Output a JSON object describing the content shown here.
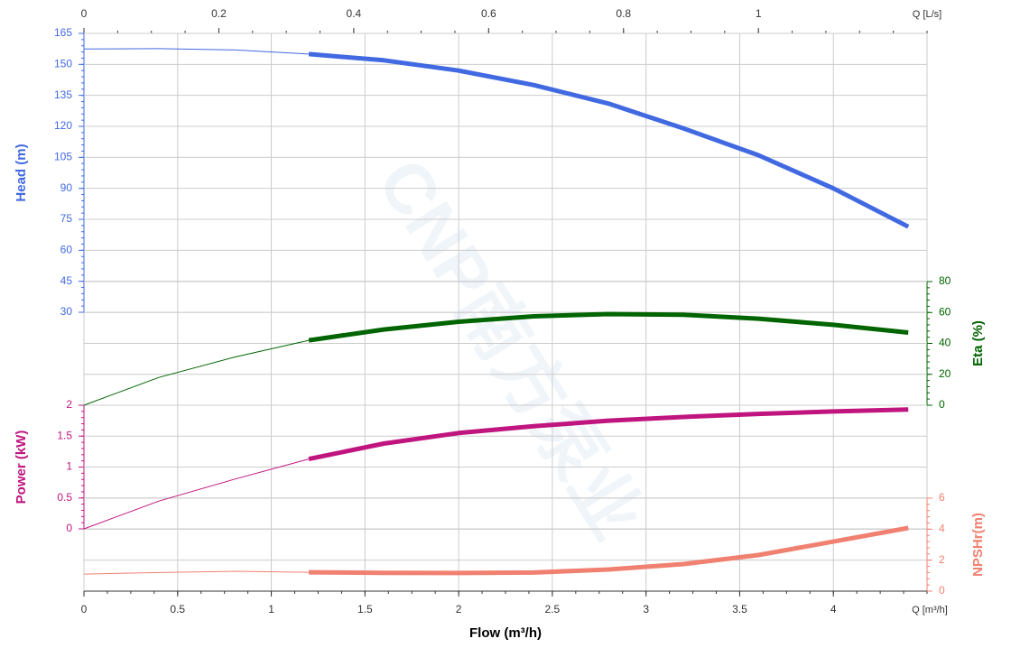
{
  "chart_data": {
    "type": "line",
    "xlabel": "Flow (m³/h)",
    "xunit_label": "Q [m³/h]",
    "xlim": [
      0,
      4.5
    ],
    "xticks": [
      0,
      0.5,
      1,
      1.5,
      2,
      2.5,
      3,
      3.5,
      4
    ],
    "x2unit_label": "Q [L/s]",
    "x2lim": [
      0,
      1.25
    ],
    "x2ticks": [
      0,
      0.2,
      0.4,
      0.6,
      0.8,
      1
    ],
    "x": [
      0,
      0.4,
      0.8,
      1.2,
      1.6,
      2.0,
      2.4,
      2.8,
      3.2,
      3.6,
      4.0,
      4.4
    ],
    "operating_range": [
      1.2,
      4.4
    ],
    "grid": true,
    "watermark": "CNP南方泵业",
    "axes": [
      {
        "label": "Head (m)",
        "side": "left",
        "color": "#4169e1",
        "ylim": [
          30,
          165
        ],
        "yticks": [
          30,
          45,
          60,
          75,
          90,
          105,
          120,
          135,
          150,
          165
        ],
        "values": [
          157.5,
          157.6,
          157,
          155,
          152,
          147,
          140,
          131,
          119,
          106,
          90,
          71.4
        ]
      },
      {
        "label": "Eta (%)",
        "side": "right",
        "color": "#006400",
        "ylim": [
          0,
          80
        ],
        "yticks": [
          0,
          20,
          40,
          60,
          80
        ],
        "values": [
          0,
          18,
          31,
          42,
          49,
          54,
          57.5,
          59,
          58.5,
          56,
          52,
          47
        ]
      },
      {
        "label": "Power (kW)",
        "side": "left",
        "color": "#c0157f",
        "ylim": [
          0,
          2
        ],
        "yticks": [
          0,
          0.5,
          1,
          1.5,
          2
        ],
        "values": [
          0,
          0.45,
          0.8,
          1.13,
          1.38,
          1.55,
          1.66,
          1.75,
          1.81,
          1.86,
          1.9,
          1.93
        ]
      },
      {
        "label": "NPSHr(m)",
        "side": "right",
        "color": "#f08070",
        "ylim": [
          0,
          6
        ],
        "yticks": [
          0,
          2,
          4,
          6
        ],
        "values": [
          1.1,
          1.2,
          1.28,
          1.22,
          1.18,
          1.17,
          1.2,
          1.4,
          1.75,
          2.33,
          3.2,
          4.08
        ]
      }
    ]
  }
}
